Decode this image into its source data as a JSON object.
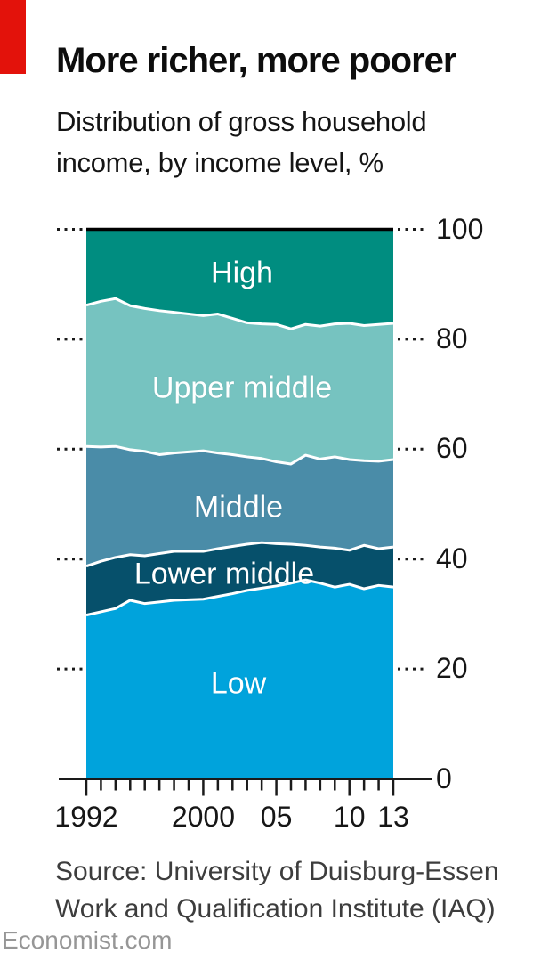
{
  "page": {
    "background": "#ffffff",
    "accent_red": "#E3120B"
  },
  "chart_data": {
    "type": "area",
    "stacked": true,
    "title": "More richer, more poorer",
    "subtitle_line1": "Distribution of gross household",
    "subtitle_line2": "income, by income level, %",
    "unit": "%",
    "ylim": [
      0,
      100
    ],
    "y_ticks": [
      100,
      80,
      60,
      40,
      20,
      0
    ],
    "grid": "dotted stubs outside plot, solid black line at 100 and 0",
    "legend": "labels inside bands",
    "x": [
      1992,
      1993,
      1994,
      1995,
      1996,
      1997,
      1998,
      1999,
      2000,
      2001,
      2002,
      2003,
      2004,
      2005,
      2006,
      2007,
      2008,
      2009,
      2010,
      2011,
      2012,
      2013
    ],
    "x_axis_labels": [
      {
        "label": "1992",
        "year": 1992
      },
      {
        "label": "2000",
        "year": 2000
      },
      {
        "label": "05",
        "year": 2005
      },
      {
        "label": "10",
        "year": 2010
      },
      {
        "label": "13",
        "year": 2013
      }
    ],
    "series": [
      {
        "name": "Low",
        "color": "#00A3DC",
        "values": [
          29.8,
          30.4,
          31.0,
          32.5,
          31.9,
          32.2,
          32.5,
          32.6,
          32.7,
          33.2,
          33.7,
          34.3,
          34.7,
          35.1,
          35.6,
          36.2,
          35.6,
          34.9,
          35.4,
          34.6,
          35.2,
          34.9
        ]
      },
      {
        "name": "Lower middle",
        "color": "#06506B",
        "values": [
          8.9,
          9.2,
          9.3,
          8.3,
          8.7,
          8.8,
          8.9,
          8.8,
          8.7,
          8.7,
          8.6,
          8.4,
          8.3,
          7.7,
          7.1,
          6.3,
          6.6,
          7.1,
          6.2,
          7.9,
          6.7,
          7.3
        ]
      },
      {
        "name": "Middle",
        "color": "#4A8CA8",
        "values": [
          21.8,
          20.8,
          20.2,
          19.1,
          19.0,
          18.0,
          17.9,
          18.1,
          18.3,
          17.4,
          16.7,
          15.9,
          15.3,
          14.9,
          14.6,
          16.4,
          16.0,
          16.6,
          16.5,
          15.4,
          15.9,
          15.9
        ]
      },
      {
        "name": "Upper middle",
        "color": "#76C3C0",
        "values": [
          25.7,
          26.5,
          26.9,
          26.2,
          26.0,
          26.2,
          25.6,
          25.1,
          24.6,
          25.3,
          24.8,
          24.4,
          24.5,
          25.0,
          24.6,
          23.8,
          24.2,
          24.2,
          24.8,
          24.6,
          24.9,
          24.8
        ]
      },
      {
        "name": "High",
        "color": "#008D80",
        "values": [
          13.8,
          13.1,
          12.6,
          13.9,
          14.4,
          14.8,
          15.1,
          15.4,
          15.7,
          15.4,
          16.2,
          17.0,
          17.2,
          17.3,
          18.1,
          17.3,
          17.6,
          17.2,
          17.1,
          17.5,
          17.3,
          17.1
        ]
      }
    ],
    "boundary_stroke": "#ffffff",
    "axis_color": "#1a1a1a"
  },
  "source": {
    "line1": "Source: University of Duisburg-Essen",
    "line2": "Work and Qualification Institute (IAQ)"
  },
  "footer": {
    "text": "Economist.com"
  }
}
